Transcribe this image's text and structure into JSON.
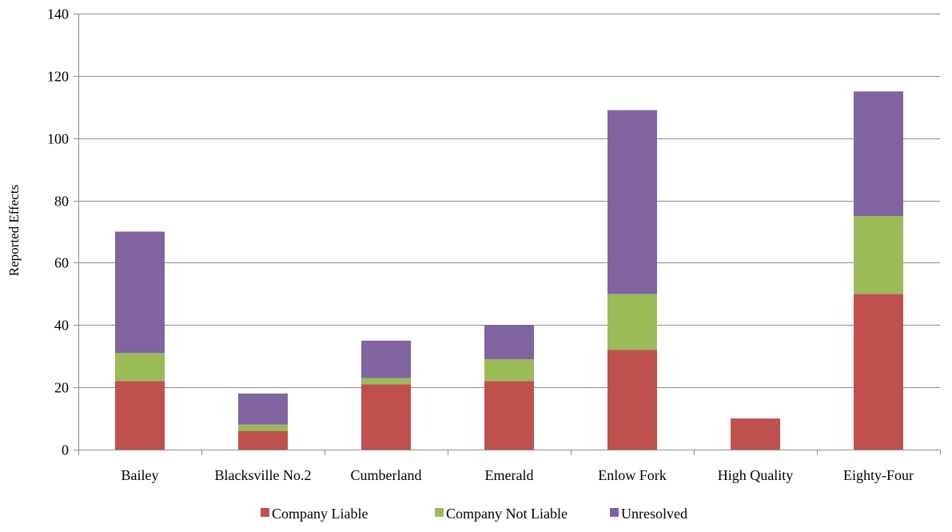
{
  "chart_data": {
    "type": "bar",
    "stacked": true,
    "title": "",
    "xlabel": "",
    "ylabel": "Reported Effects",
    "ylim": [
      0,
      140
    ],
    "yticks": [
      0,
      20,
      40,
      60,
      80,
      100,
      120,
      140
    ],
    "grid": true,
    "legend_position": "bottom",
    "categories": [
      "Bailey",
      "Blacksville No.2",
      "Cumberland",
      "Emerald",
      "Enlow Fork",
      "High Quality",
      "Eighty-Four"
    ],
    "series": [
      {
        "name": "Company Liable",
        "color": "#C0504D",
        "values": [
          22,
          6,
          21,
          22,
          32,
          10,
          50
        ]
      },
      {
        "name": "Company Not Liable",
        "color": "#9BBB59",
        "values": [
          9,
          2,
          2,
          7,
          18,
          0,
          25
        ]
      },
      {
        "name": "Unresolved",
        "color": "#8064A2",
        "values": [
          39,
          10,
          12,
          11,
          59,
          0,
          40
        ]
      }
    ]
  }
}
